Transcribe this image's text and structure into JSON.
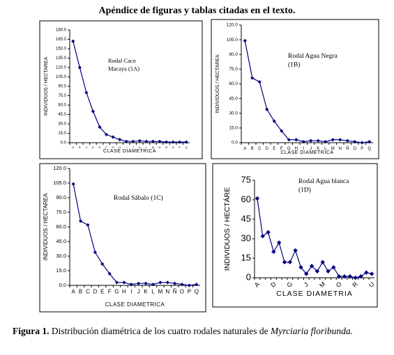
{
  "title": "Apéndice de figuras y tablas citadas en el texto.",
  "caption": {
    "label": "Figura 1.",
    "text": "Distribución diamétrica de los cuatro rodales naturales de",
    "species": "Myrciaria floribunda."
  },
  "chart_data": [
    {
      "type": "line",
      "annotation": [
        "Rodal Caco",
        "Macaya (1A)"
      ],
      "y_label": "INDIVIDUOS / HECTAREA",
      "x_label": "CLASE DIAMETRICA",
      "color": "#000080",
      "categories": [
        "A",
        "B",
        "C",
        "D",
        "E",
        "F",
        "G",
        "H",
        "I",
        "J",
        "K",
        "L",
        "M",
        "N",
        "Ñ",
        "O",
        "P",
        "Q"
      ],
      "values": [
        162,
        120,
        80,
        50,
        25,
        13,
        9,
        5,
        2,
        2,
        3,
        2,
        2,
        2,
        1,
        1,
        1,
        1
      ],
      "ylim": [
        0,
        180
      ],
      "yticks": [
        {
          "value": 0,
          "label": "0.0"
        },
        {
          "value": 15,
          "label": "15.0"
        },
        {
          "value": 30,
          "label": "30.0"
        },
        {
          "value": 45,
          "label": "45.0"
        },
        {
          "value": 60,
          "label": "60.0"
        },
        {
          "value": 75,
          "label": "75.0"
        },
        {
          "value": 90,
          "label": "90.0"
        },
        {
          "value": 105,
          "label": "105.0"
        },
        {
          "value": 120,
          "label": "120.0"
        },
        {
          "value": 135,
          "label": "135.0"
        },
        {
          "value": 150,
          "label": "150.0"
        },
        {
          "value": 165,
          "label": "165.0"
        },
        {
          "value": 180,
          "label": "180.0"
        }
      ]
    },
    {
      "type": "line",
      "annotation": [
        "Rodal Agua Negra",
        "(1B)"
      ],
      "y_label": "INDIVIDUOS / HECTAREA",
      "x_label": "CLASE DIAMETRICA",
      "color": "#000080",
      "categories": [
        "A",
        "B",
        "C",
        "D",
        "E",
        "F",
        "G",
        "H",
        "I",
        "J",
        "K",
        "L",
        "M",
        "N",
        "Ñ",
        "O",
        "P",
        "Q"
      ],
      "values": [
        104,
        66,
        62,
        34,
        22,
        12,
        3,
        3,
        1,
        2,
        2,
        1,
        3,
        3,
        2,
        1,
        0,
        1
      ],
      "ylim": [
        0,
        120
      ],
      "yticks": [
        {
          "value": 0,
          "label": "0.0"
        },
        {
          "value": 15,
          "label": "15.0"
        },
        {
          "value": 30,
          "label": "30.0"
        },
        {
          "value": 45,
          "label": "45.0"
        },
        {
          "value": 60,
          "label": "60.0"
        },
        {
          "value": 75,
          "label": "75.0"
        },
        {
          "value": 90,
          "label": "90.0"
        },
        {
          "value": 105,
          "label": "105.0"
        },
        {
          "value": 120,
          "label": "120.0"
        }
      ]
    },
    {
      "type": "line",
      "annotation": [
        "Rodal  Sábalo (1C)"
      ],
      "y_label": "INDIVIDUOS / HECTAREA",
      "x_label": "CLASE DIAMETRICA",
      "color": "#000080",
      "categories": [
        "A",
        "B",
        "C",
        "D",
        "E",
        "F",
        "G",
        "H",
        "I",
        "J",
        "K",
        "L",
        "M",
        "N",
        "Ñ",
        "O",
        "P",
        "Q"
      ],
      "values": [
        104,
        66,
        62,
        34,
        22,
        12,
        3,
        3,
        1,
        2,
        2,
        1,
        3,
        3,
        2,
        1,
        0,
        1
      ],
      "ylim": [
        0,
        120
      ],
      "yticks": [
        {
          "value": 0,
          "label": "0.0"
        },
        {
          "value": 15,
          "label": "15.0"
        },
        {
          "value": 30,
          "label": "30.0"
        },
        {
          "value": 45,
          "label": "45.0"
        },
        {
          "value": 60,
          "label": "60.0"
        },
        {
          "value": 75,
          "label": "75.0"
        },
        {
          "value": 90,
          "label": "90.0"
        },
        {
          "value": 105,
          "label": "105.0"
        },
        {
          "value": 120,
          "label": "120.0"
        }
      ]
    },
    {
      "type": "line",
      "annotation": [
        "Rodal Agua blanca",
        "(1D)"
      ],
      "y_label": "INDIVIDUOS / HECTÁRE",
      "x_label": "CLASE DIAMETRIA",
      "color": "#000080",
      "categories": [
        "A",
        null,
        null,
        "D",
        null,
        null,
        "G",
        null,
        null,
        "J",
        null,
        null,
        "M",
        null,
        null,
        "O",
        null,
        null,
        "R",
        null,
        null,
        "U"
      ],
      "values": [
        61,
        32,
        35,
        20,
        27,
        12,
        12,
        21,
        8,
        3,
        9,
        5,
        12,
        5,
        8,
        1,
        1,
        1,
        0,
        1,
        4,
        3
      ],
      "ylim": [
        0,
        75
      ],
      "yticks": [
        0,
        15,
        30,
        45,
        60,
        75
      ]
    }
  ]
}
